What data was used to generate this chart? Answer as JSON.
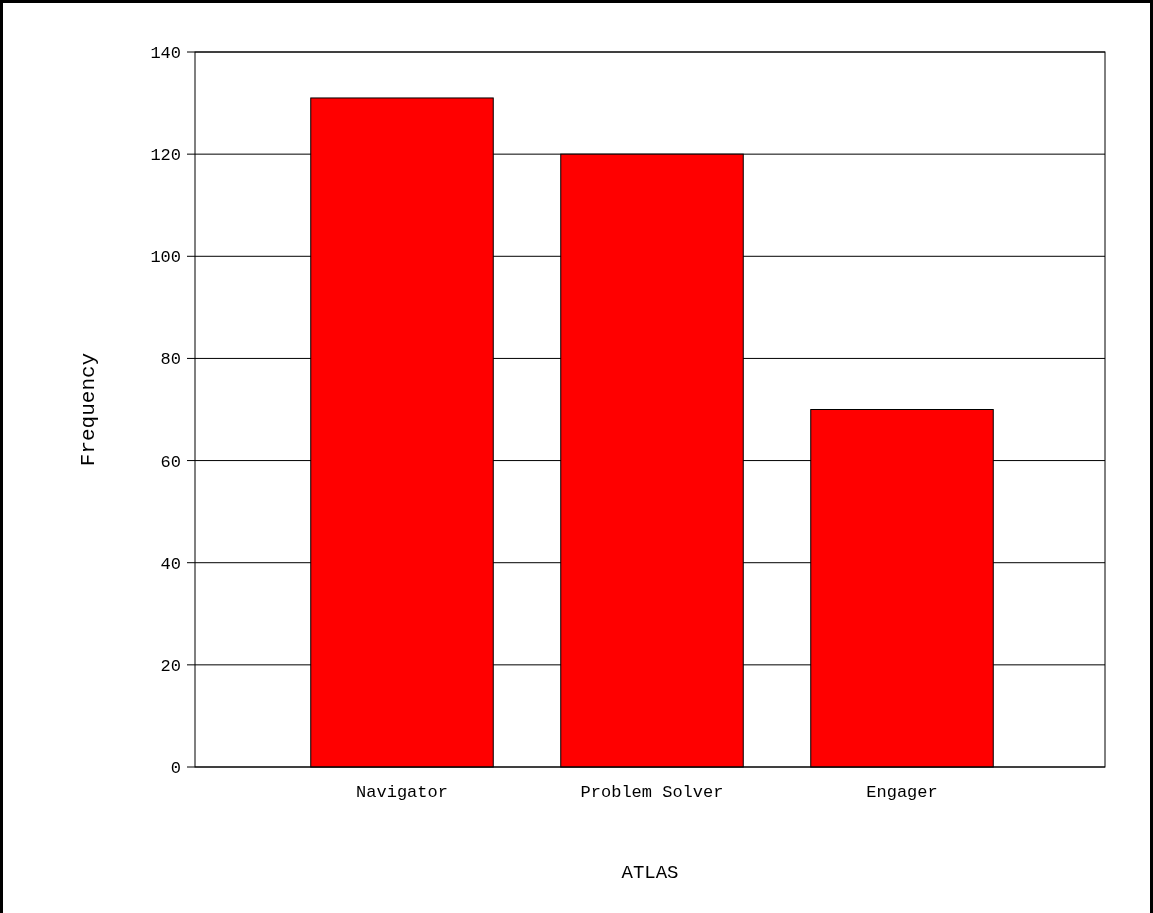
{
  "chart_data": {
    "type": "bar",
    "xlabel": "ATLAS",
    "ylabel": "Frequency",
    "categories": [
      "Navigator",
      "Problem Solver",
      "Engager"
    ],
    "values": [
      131,
      120,
      70
    ],
    "color": "#ff0000",
    "ylim": [
      0,
      140
    ],
    "yticks": [
      0,
      20,
      40,
      60,
      80,
      100,
      120,
      140
    ],
    "grid": "y"
  }
}
